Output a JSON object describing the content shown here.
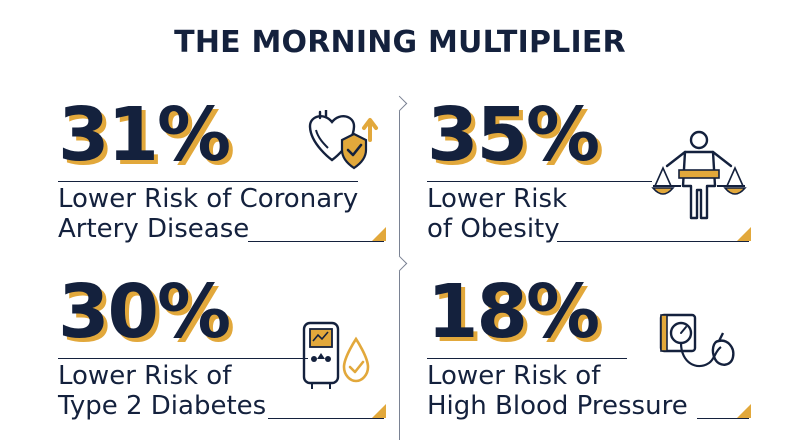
{
  "header": {
    "title": "THE MORNING MULTIPLIER"
  },
  "colors": {
    "navy": "#14213d",
    "gold": "#e2a83b"
  },
  "stats": [
    {
      "value": "31%",
      "line1": "Lower Risk of Coronary",
      "line2": "Artery Disease",
      "icon": "heart-shield-icon"
    },
    {
      "value": "35%",
      "line1": "Lower Risk",
      "line2": "of Obesity",
      "icon": "body-scale-icon"
    },
    {
      "value": "30%",
      "line1": "Lower Risk of",
      "line2": "Type 2 Diabetes",
      "icon": "glucose-meter-icon"
    },
    {
      "value": "18%",
      "line1": "Lower Risk of",
      "line2": "High Blood Pressure",
      "icon": "blood-pressure-cuff-icon"
    }
  ]
}
